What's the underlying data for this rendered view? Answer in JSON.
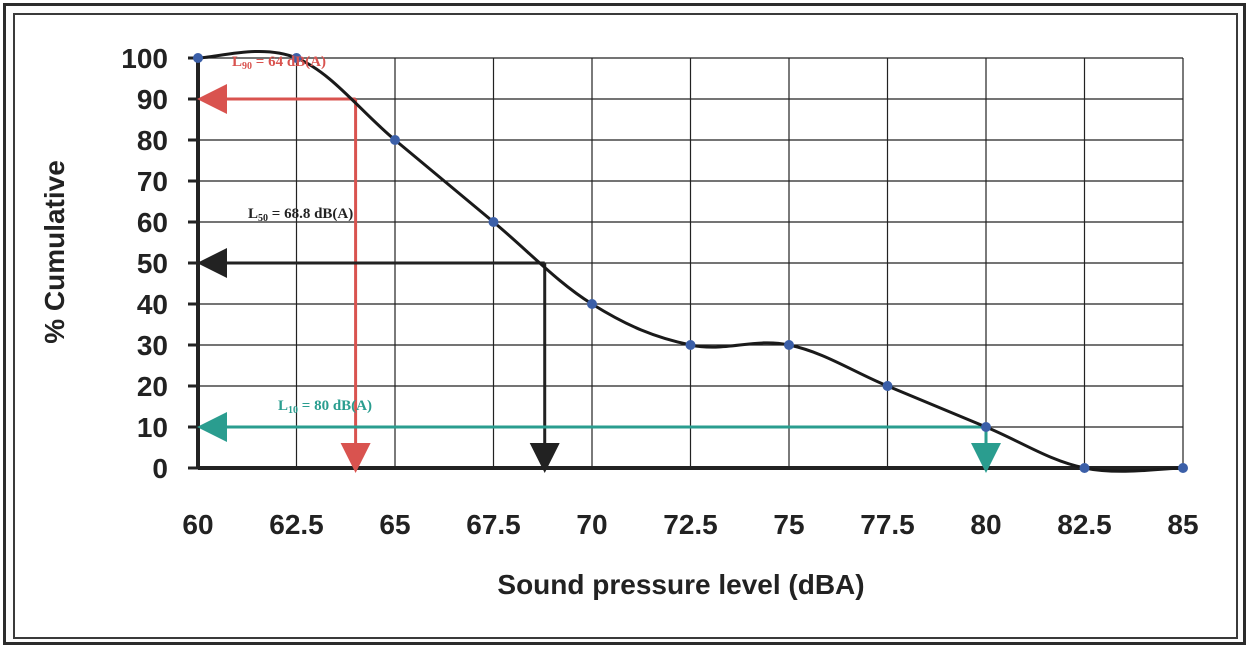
{
  "chart_data": {
    "type": "line",
    "xlabel": "Sound pressure level (dBA)",
    "ylabel": "% Cumulative",
    "xlim": [
      60,
      85
    ],
    "ylim": [
      0,
      100
    ],
    "x_ticks": [
      "60",
      "62.5",
      "65",
      "67.5",
      "70",
      "72.5",
      "75",
      "77.5",
      "80",
      "82.5",
      "85"
    ],
    "y_ticks": [
      "0",
      "10",
      "20",
      "30",
      "40",
      "50",
      "60",
      "70",
      "80",
      "90",
      "100"
    ],
    "grid": true,
    "series": [
      {
        "x": [
          60,
          62.5,
          65,
          67.5,
          70,
          72.5,
          75,
          77.5,
          80,
          82.5,
          85
        ],
        "y": [
          100,
          100,
          80,
          60,
          40,
          30,
          30,
          20,
          10,
          0,
          0
        ]
      }
    ],
    "annotations": [
      {
        "label": "L90",
        "text": "= 64 dB(A)",
        "x": 64,
        "y": 90,
        "color": "#d9534f"
      },
      {
        "label": "L50",
        "text": "= 68.8 dB(A)",
        "x": 68.8,
        "y": 50,
        "color": "#222222"
      },
      {
        "label": "L10",
        "text": "= 80 dB(A)",
        "x": 80,
        "y": 10,
        "color": "#2a9d8f"
      }
    ]
  },
  "colors": {
    "line": "#1a1a1a",
    "marker": "#3b5fa8",
    "grid": "#222222"
  }
}
